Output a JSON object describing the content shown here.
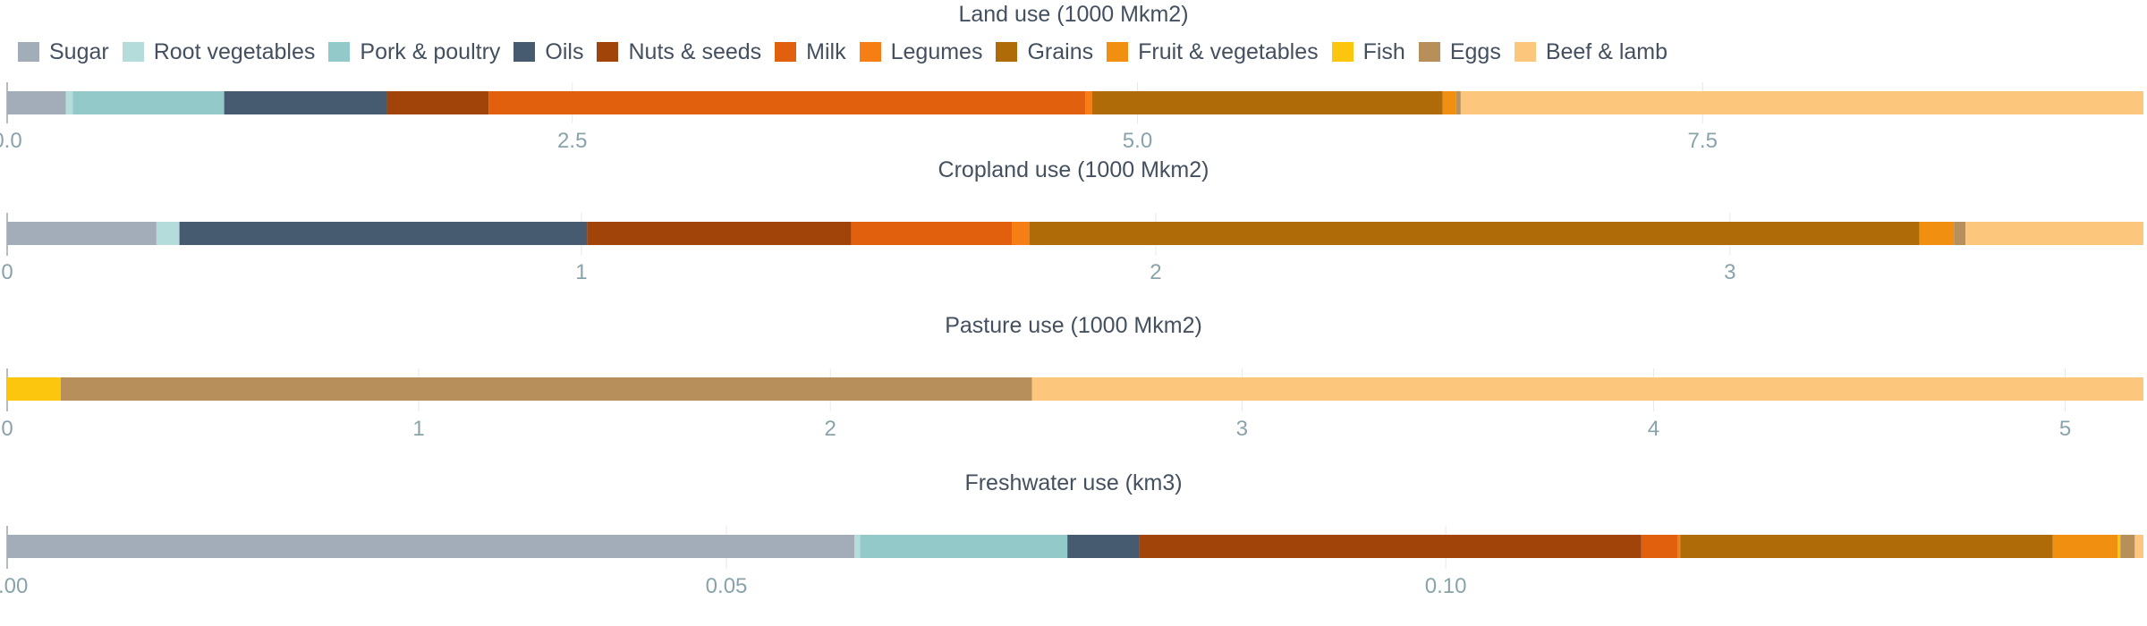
{
  "legend": [
    {
      "name": "Sugar",
      "color": "#a2adb9"
    },
    {
      "name": "Root vegetables",
      "color": "#b3dcdb"
    },
    {
      "name": "Pork & poultry",
      "color": "#93cac9"
    },
    {
      "name": "Oils",
      "color": "#465b70"
    },
    {
      "name": "Nuts & seeds",
      "color": "#a0440a"
    },
    {
      "name": "Milk",
      "color": "#e0600e"
    },
    {
      "name": "Legumes",
      "color": "#f57f14"
    },
    {
      "name": "Grains",
      "color": "#b06b09"
    },
    {
      "name": "Fruit & vegetables",
      "color": "#f19010"
    },
    {
      "name": "Fish",
      "color": "#fcc60e"
    },
    {
      "name": "Eggs",
      "color": "#b68f5a"
    },
    {
      "name": "Beef & lamb",
      "color": "#fcc77d"
    }
  ],
  "chart_data": [
    {
      "type": "bar",
      "orientation": "horizontal",
      "stacked": true,
      "title": "Land use (1000 Mkm2)",
      "xlim": [
        0,
        9.45
      ],
      "ticks": [
        {
          "value": 0,
          "label": "0.0"
        },
        {
          "value": 2.5,
          "label": "2.5"
        },
        {
          "value": 5.0,
          "label": "5.0"
        },
        {
          "value": 7.5,
          "label": "7.5"
        }
      ],
      "segments": [
        {
          "name": "Sugar",
          "value": 0.26
        },
        {
          "name": "Root vegetables",
          "value": 0.03
        },
        {
          "name": "Pork & poultry",
          "value": 0.67
        },
        {
          "name": "Oils",
          "value": 0.72
        },
        {
          "name": "Nuts & seeds",
          "value": 0.45
        },
        {
          "name": "Milk",
          "value": 2.64
        },
        {
          "name": "Legumes",
          "value": 0.03
        },
        {
          "name": "Grains",
          "value": 1.55
        },
        {
          "name": "Fruit & vegetables",
          "value": 0.06
        },
        {
          "name": "Fish",
          "value": 0.0
        },
        {
          "name": "Eggs",
          "value": 0.02
        },
        {
          "name": "Beef & lamb",
          "value": 3.02
        }
      ]
    },
    {
      "type": "bar",
      "orientation": "horizontal",
      "stacked": true,
      "title": "Cropland use (1000 Mkm2)",
      "xlim": [
        0,
        3.72
      ],
      "ticks": [
        {
          "value": 0,
          "label": "0"
        },
        {
          "value": 1,
          "label": "1"
        },
        {
          "value": 2,
          "label": "2"
        },
        {
          "value": 3,
          "label": "3"
        }
      ],
      "segments": [
        {
          "name": "Sugar",
          "value": 0.26
        },
        {
          "name": "Root vegetables",
          "value": 0.04
        },
        {
          "name": "Pork & poultry",
          "value": 0.0
        },
        {
          "name": "Oils",
          "value": 0.71
        },
        {
          "name": "Nuts & seeds",
          "value": 0.46
        },
        {
          "name": "Milk",
          "value": 0.28
        },
        {
          "name": "Legumes",
          "value": 0.03
        },
        {
          "name": "Grains",
          "value": 1.55
        },
        {
          "name": "Fruit & vegetables",
          "value": 0.06
        },
        {
          "name": "Fish",
          "value": 0.0
        },
        {
          "name": "Eggs",
          "value": 0.02
        },
        {
          "name": "Beef & lamb",
          "value": 0.31
        }
      ]
    },
    {
      "type": "bar",
      "orientation": "horizontal",
      "stacked": true,
      "title": "Pasture use (1000 Mkm2)",
      "xlim": [
        0,
        5.19
      ],
      "ticks": [
        {
          "value": 0,
          "label": "0"
        },
        {
          "value": 1,
          "label": "1"
        },
        {
          "value": 2,
          "label": "2"
        },
        {
          "value": 3,
          "label": "3"
        },
        {
          "value": 4,
          "label": "4"
        },
        {
          "value": 5,
          "label": "5"
        }
      ],
      "segments": [
        {
          "name": "Fish",
          "value": 0.13
        },
        {
          "name": "Eggs",
          "value": 2.36
        },
        {
          "name": "Beef & lamb",
          "value": 2.7
        }
      ]
    },
    {
      "type": "bar",
      "orientation": "horizontal",
      "stacked": true,
      "title": "Freshwater use (km3)",
      "xlim": [
        0,
        0.1485
      ],
      "ticks": [
        {
          "value": 0,
          "label": "0.00"
        },
        {
          "value": 0.05,
          "label": "0.05"
        },
        {
          "value": 0.1,
          "label": "0.10"
        }
      ],
      "segments": [
        {
          "name": "Sugar",
          "value": 0.0589
        },
        {
          "name": "Root vegetables",
          "value": 0.0004
        },
        {
          "name": "Pork & poultry",
          "value": 0.0144
        },
        {
          "name": "Oils",
          "value": 0.005
        },
        {
          "name": "Nuts & seeds",
          "value": 0.0349
        },
        {
          "name": "Milk",
          "value": 0.0025
        },
        {
          "name": "Legumes",
          "value": 0.0002
        },
        {
          "name": "Grains",
          "value": 0.0259
        },
        {
          "name": "Fruit & vegetables",
          "value": 0.0045
        },
        {
          "name": "Fish",
          "value": 0.0002
        },
        {
          "name": "Eggs",
          "value": 0.001
        },
        {
          "name": "Beef & lamb",
          "value": 0.0006
        }
      ]
    }
  ]
}
